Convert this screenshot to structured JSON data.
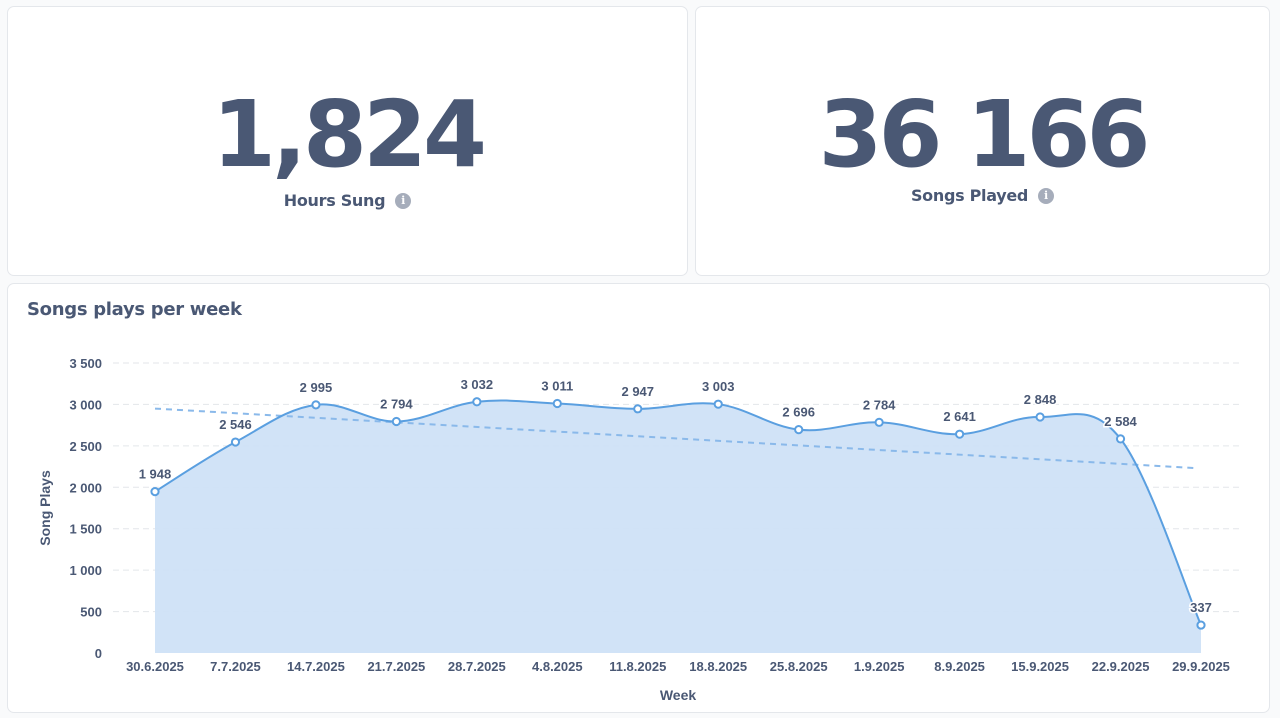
{
  "scalars": {
    "hours_sung": {
      "value": "1,824",
      "label": "Hours Sung",
      "info_icon": "info-icon"
    },
    "songs_played": {
      "value": "36 166",
      "label": "Songs Played",
      "info_icon": "info-icon"
    }
  },
  "colors": {
    "text": "#4a5874",
    "line": "#5a9fe0",
    "area_fill": "#cfe2f7",
    "trend": "#8ab9ea",
    "grid": "#e3e6ea"
  },
  "chart_data": {
    "type": "area",
    "title": "Songs plays per week",
    "xlabel": "Week",
    "ylabel": "Song Plays",
    "ylim": [
      0,
      3500
    ],
    "yticks": [
      0,
      500,
      1000,
      1500,
      2000,
      2500,
      3000,
      3500
    ],
    "ytick_labels": [
      "0",
      "500",
      "1 000",
      "1 500",
      "2 000",
      "2 500",
      "3 000",
      "3 500"
    ],
    "grid": true,
    "categories": [
      "30.6.2025",
      "7.7.2025",
      "14.7.2025",
      "21.7.2025",
      "28.7.2025",
      "4.8.2025",
      "11.8.2025",
      "18.8.2025",
      "25.8.2025",
      "1.9.2025",
      "8.9.2025",
      "15.9.2025",
      "22.9.2025",
      "29.9.2025"
    ],
    "series": [
      {
        "name": "Song Plays",
        "values": [
          1948,
          2546,
          2995,
          2794,
          3032,
          3011,
          2947,
          3003,
          2696,
          2784,
          2641,
          2848,
          2584,
          337
        ],
        "value_labels": [
          "1 948",
          "2 546",
          "2 995",
          "2 794",
          "3 032",
          "3 011",
          "2 947",
          "3 003",
          "2 696",
          "2 784",
          "2 641",
          "2 848",
          "2 584",
          "337"
        ]
      }
    ],
    "trendline": {
      "style": "dashed",
      "start": 2950,
      "end": 2230
    }
  }
}
